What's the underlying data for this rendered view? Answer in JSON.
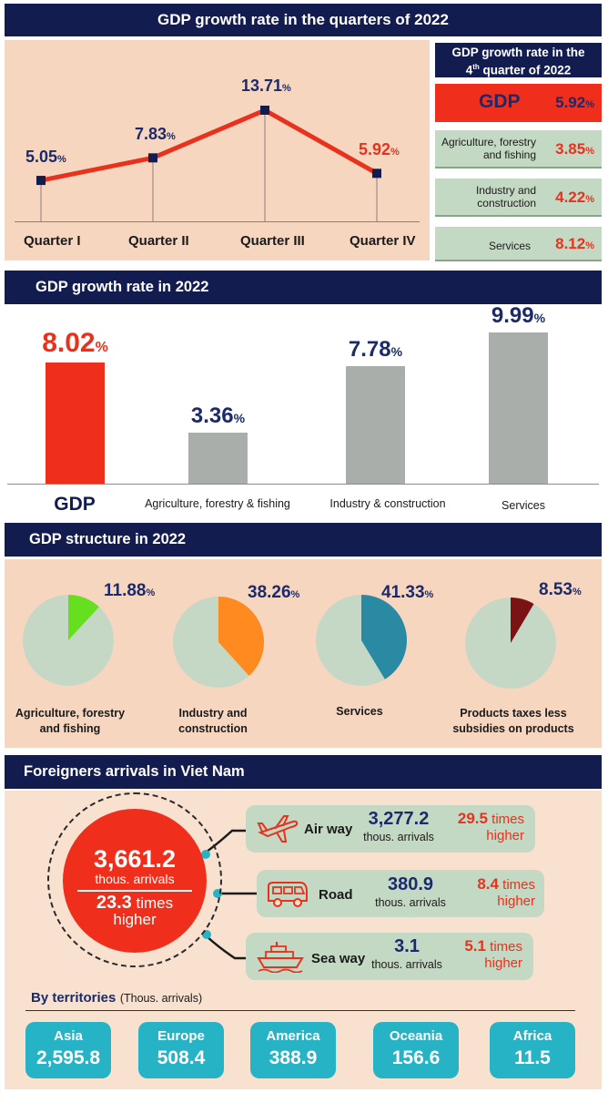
{
  "quarters_section": {
    "title": "GDP growth rate in the quarters of 2022",
    "pct_symbol": "%"
  },
  "q4_section": {
    "title_line1": "GDP growth rate in the",
    "title_line2_num": "4",
    "title_line2_sup": "th",
    "title_line2_rest": " quarter of 2022",
    "gdp_label": "GDP",
    "gdp_value": "5.92",
    "sectors": [
      {
        "label_line1": "Agriculture, forestry",
        "label_line2": "and fishing",
        "value": "3.85"
      },
      {
        "label_line1": "Industry and",
        "label_line2": "construction",
        "value": "4.22"
      },
      {
        "label_line1": "Services",
        "label_line2": "",
        "value": "8.12"
      }
    ]
  },
  "annual_section": {
    "title": "GDP growth rate in 2022"
  },
  "structure_section": {
    "title": "GDP structure in 2022"
  },
  "arrivals_section": {
    "title": "Foreigners arrivals in Viet Nam",
    "total_value": "3,661.2",
    "total_unit": "thous. arrivals",
    "total_times_num": "23.3",
    "total_times_word": "times",
    "total_times_higher": "higher",
    "modes": [
      {
        "name": "Air way",
        "icon": "airplane-icon",
        "value": "3,277.2",
        "unit": "thous. arrivals",
        "times_num": "29.5",
        "times_word": "times",
        "higher": "higher"
      },
      {
        "name": "Road",
        "icon": "bus-icon",
        "value": "380.9",
        "unit": "thous. arrivals",
        "times_num": "8.4",
        "times_word": "times",
        "higher": "higher"
      },
      {
        "name": "Sea way",
        "icon": "ship-icon",
        "value": "3.1",
        "unit": "thous. arrivals",
        "times_num": "5.1",
        "times_word": "times",
        "higher": "higher"
      }
    ],
    "territories_title": "By territories",
    "territories_unit": "(Thous. arrivals)",
    "territories": [
      {
        "name": "Asia",
        "value": "2,595.8"
      },
      {
        "name": "Europe",
        "value": "508.4"
      },
      {
        "name": "America",
        "value": "388.9"
      },
      {
        "name": "Oceania",
        "value": "156.6"
      },
      {
        "name": "Africa",
        "value": "11.5"
      }
    ]
  },
  "colors": {
    "navy": "#121c4f",
    "red": "#e8321e",
    "peach": "#f7d6c0",
    "sage": "#c4d9c4",
    "teal": "#27b3c6",
    "grey_bar": "#a9aeaa"
  },
  "chart_data": [
    {
      "type": "line",
      "title": "GDP growth rate in the quarters of 2022",
      "categories": [
        "Quarter I",
        "Quarter II",
        "Quarter III",
        "Quarter IV"
      ],
      "values": [
        5.05,
        7.83,
        13.71,
        5.92
      ],
      "labels": [
        "5.05",
        "7.83",
        "13.71",
        "5.92"
      ],
      "unit": "%"
    },
    {
      "type": "bar",
      "title": "GDP growth rate in 2022",
      "categories": [
        "GDP",
        "Agriculture, forestry & fishing",
        "Industry & construction",
        "Services"
      ],
      "values": [
        8.02,
        3.36,
        7.78,
        9.99
      ],
      "labels": [
        "8.02",
        "3.36",
        "7.78",
        "9.99"
      ],
      "unit": "%"
    },
    {
      "type": "pie",
      "title": "GDP structure in 2022",
      "categories": [
        "Agriculture, forestry and fishing",
        "Industry and construction",
        "Services",
        "Products taxes less subsidies on products"
      ],
      "values": [
        11.88,
        38.26,
        41.33,
        8.53
      ],
      "labels": [
        "11.88",
        "38.26",
        "41.33",
        "8.53"
      ],
      "label_lines": [
        [
          "Agriculture, forestry",
          "and fishing"
        ],
        [
          "Industry and",
          "construction"
        ],
        [
          "Services"
        ],
        [
          "Products taxes less",
          "subsidies on products"
        ]
      ],
      "colors": [
        "#66e01e",
        "#ff8a1f",
        "#2a8aa3",
        "#7a1414"
      ],
      "unit": "%"
    }
  ]
}
